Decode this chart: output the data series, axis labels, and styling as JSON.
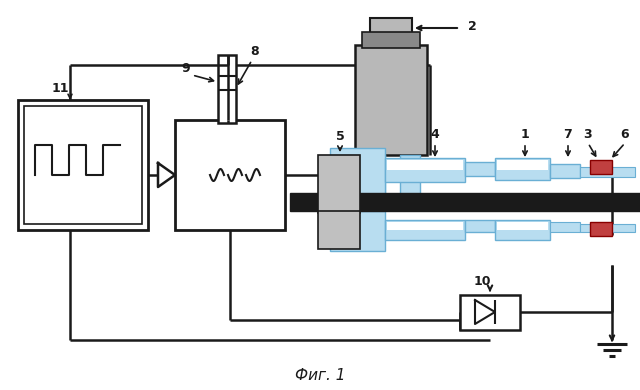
{
  "bg_color": "#ffffff",
  "lc": "#1a1a1a",
  "blue_fill": "#b8ddf0",
  "blue_edge": "#6aafd4",
  "gray_fill": "#b8b8b8",
  "gray_dark": "#888888",
  "red_fill": "#c04040",
  "black_bar": "#1a1a1a",
  "caption": "Фиг. 1"
}
